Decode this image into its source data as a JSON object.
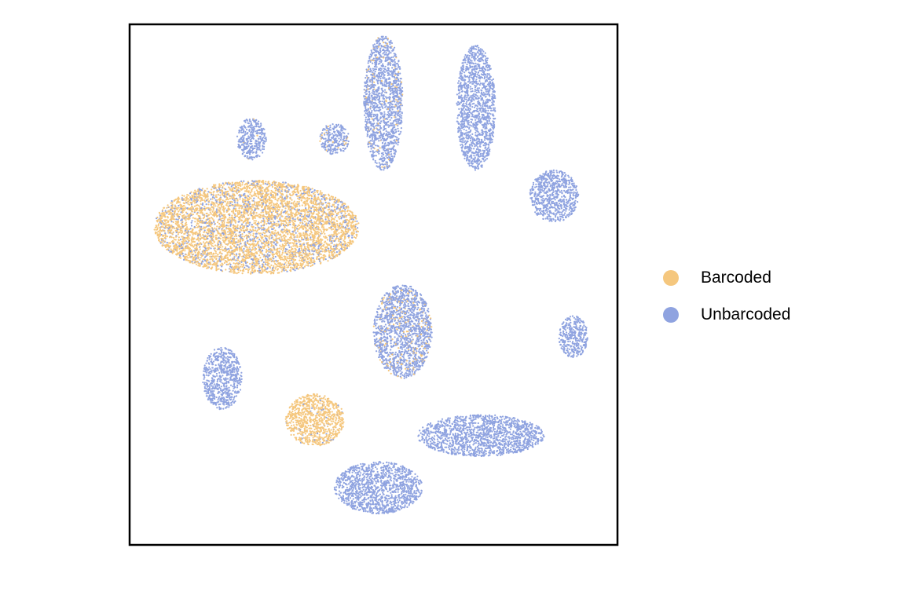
{
  "chart_data": {
    "type": "scatter",
    "title": "",
    "xlabel": "",
    "ylabel": "",
    "axes_visible": false,
    "grid": false,
    "legend_position": "right",
    "xlim": [
      0,
      100
    ],
    "ylim": [
      0,
      100
    ],
    "series": [
      {
        "name": "Barcoded",
        "color": "#F5C77E"
      },
      {
        "name": "Unbarcoded",
        "color": "#8FA3E0"
      }
    ],
    "clusters": [
      {
        "id": "large-mixed",
        "cx": 26,
        "cy": 61,
        "rx": 21,
        "ry": 9,
        "barcoded_fraction": 0.8
      },
      {
        "id": "small-barcoded",
        "cx": 38,
        "cy": 24,
        "rx": 6,
        "ry": 5,
        "barcoded_fraction": 0.95
      },
      {
        "id": "center",
        "cx": 56,
        "cy": 41,
        "rx": 6,
        "ry": 9,
        "barcoded_fraction": 0.12
      },
      {
        "id": "top-left-1",
        "cx": 25,
        "cy": 78,
        "rx": 3,
        "ry": 4,
        "barcoded_fraction": 0.03
      },
      {
        "id": "top-left-2",
        "cx": 42,
        "cy": 78,
        "rx": 3,
        "ry": 3,
        "barcoded_fraction": 0.08
      },
      {
        "id": "top-streak",
        "cx": 52,
        "cy": 85,
        "rx": 4,
        "ry": 13,
        "barcoded_fraction": 0.06
      },
      {
        "id": "top-right-streak",
        "cx": 71,
        "cy": 84,
        "rx": 4,
        "ry": 12,
        "barcoded_fraction": 0.0
      },
      {
        "id": "right",
        "cx": 87,
        "cy": 67,
        "rx": 5,
        "ry": 5,
        "barcoded_fraction": 0.0
      },
      {
        "id": "far-right",
        "cx": 91,
        "cy": 40,
        "rx": 3,
        "ry": 4,
        "barcoded_fraction": 0.0
      },
      {
        "id": "lower-left",
        "cx": 19,
        "cy": 32,
        "rx": 4,
        "ry": 6,
        "barcoded_fraction": 0.0
      },
      {
        "id": "bottom-right",
        "cx": 72,
        "cy": 21,
        "rx": 13,
        "ry": 4,
        "barcoded_fraction": 0.0
      },
      {
        "id": "bottom",
        "cx": 51,
        "cy": 11,
        "rx": 9,
        "ry": 5,
        "barcoded_fraction": 0.0
      }
    ]
  }
}
